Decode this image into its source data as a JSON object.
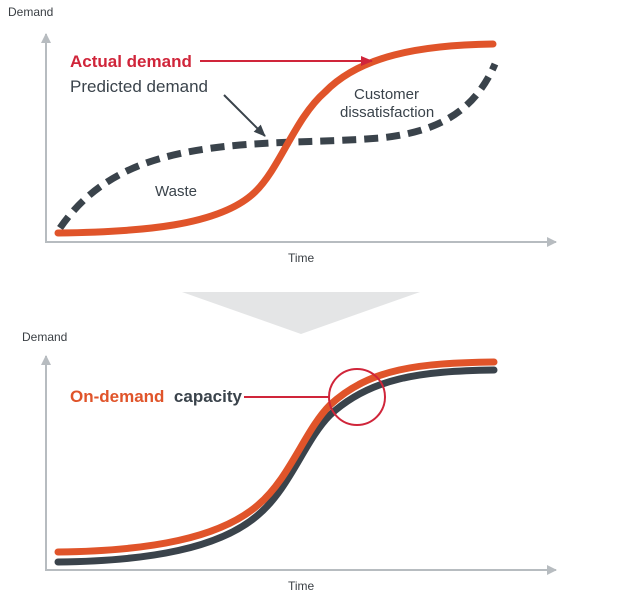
{
  "top_panel": {
    "y_axis_label": "Demand",
    "x_axis_label": "Time",
    "actual_label": "Actual demand",
    "predicted_label": "Predicted demand",
    "waste_label": "Waste",
    "dissatisfaction_label_line1": "Customer",
    "dissatisfaction_label_line2": "dissatisfaction"
  },
  "bottom_panel": {
    "y_axis_label": "Demand",
    "x_axis_label": "Time",
    "capacity_label_part1": "On-demand",
    "capacity_label_part2": "capacity"
  },
  "colors": {
    "actual_demand": "#e0542a",
    "predicted_demand": "#3a434b",
    "capacity": "#3a434b",
    "label_red": "#d0253a",
    "axis": "#b7bcc0",
    "transition_arrow": "#e4e5e6",
    "highlight_circle": "#d0253a",
    "pointer_arrow": "#d0253a",
    "pointer_arrow_dark": "#3a434b"
  }
}
